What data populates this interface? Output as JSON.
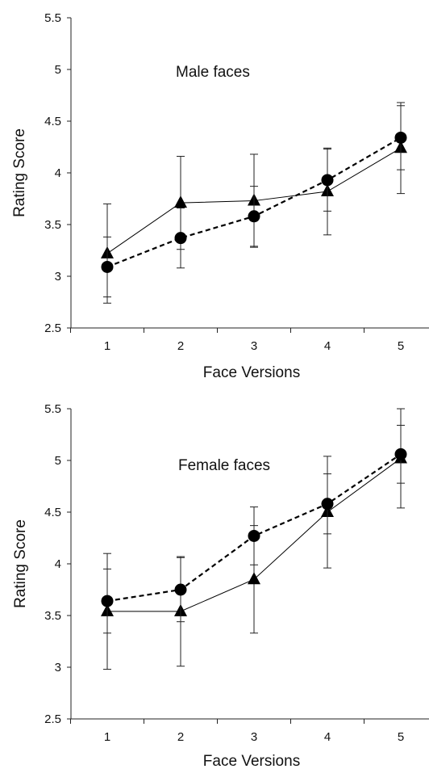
{
  "chart_data": [
    {
      "type": "line",
      "title": "Male faces",
      "xlabel": "Face Versions",
      "ylabel": "Rating Score",
      "categories": [
        "1",
        "2",
        "3",
        "4",
        "5"
      ],
      "ylim": [
        2.5,
        5.5
      ],
      "yticks": [
        "2.5",
        "3",
        "3.5",
        "4",
        "4.5",
        "5",
        "5.5"
      ],
      "grid": false,
      "series": [
        {
          "marker": "triangle",
          "line_style": "solid",
          "values": [
            3.22,
            3.71,
            3.73,
            3.82,
            4.24
          ],
          "error": [
            0.48,
            0.45,
            0.45,
            0.42,
            0.44
          ]
        },
        {
          "marker": "circle",
          "line_style": "dashed",
          "values": [
            3.09,
            3.37,
            3.58,
            3.93,
            4.34
          ],
          "error": [
            0.29,
            0.29,
            0.29,
            0.3,
            0.31
          ]
        }
      ]
    },
    {
      "type": "line",
      "title": "Female faces",
      "xlabel": "Face Versions",
      "ylabel": "Rating Score",
      "categories": [
        "1",
        "2",
        "3",
        "4",
        "5"
      ],
      "ylim": [
        2.5,
        5.5
      ],
      "yticks": [
        "2.5",
        "3",
        "3.5",
        "4",
        "4.5",
        "5",
        "5.5"
      ],
      "grid": false,
      "series": [
        {
          "marker": "triangle",
          "line_style": "solid",
          "values": [
            3.54,
            3.54,
            3.85,
            4.5,
            5.02
          ],
          "error": [
            0.56,
            0.53,
            0.52,
            0.54,
            0.48
          ]
        },
        {
          "marker": "circle",
          "line_style": "dashed",
          "values": [
            3.64,
            3.75,
            4.27,
            4.58,
            5.06
          ],
          "error": [
            0.31,
            0.31,
            0.28,
            0.29,
            0.28
          ]
        }
      ]
    }
  ]
}
